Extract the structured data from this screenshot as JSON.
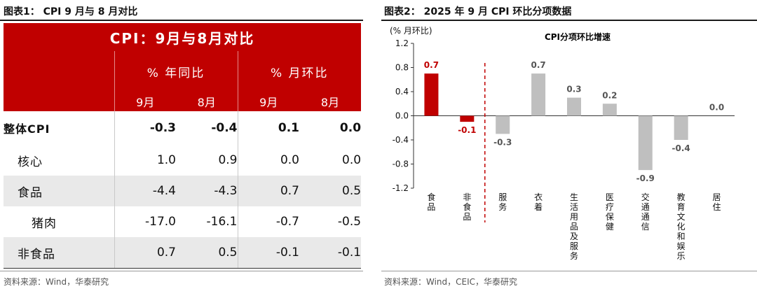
{
  "left_panel": {
    "title": "图表1： CPI 9 月与 8 月对比",
    "table_title": "CPI：9月与8月对比",
    "group_headers": [
      "% 年同比",
      "% 月环比"
    ],
    "month_headers": [
      "9月",
      "8月",
      "9月",
      "8月"
    ],
    "rows": [
      {
        "label": "整体CPI",
        "values": [
          "-0.3",
          "-0.4",
          "0.1",
          "0.0"
        ]
      },
      {
        "label": "核心",
        "values": [
          "1.0",
          "0.9",
          "0.0",
          "0.0"
        ]
      },
      {
        "label": "食品",
        "values": [
          "-4.4",
          "-4.3",
          "0.7",
          "0.5"
        ]
      },
      {
        "label": "猪肉",
        "values": [
          "-17.0",
          "-16.1",
          "-0.7",
          "-0.5"
        ]
      },
      {
        "label": "非食品",
        "values": [
          "0.7",
          "0.5",
          "-0.1",
          "-0.1"
        ]
      }
    ],
    "source": "资料来源：Wind，华泰研究"
  },
  "right_panel": {
    "title": "图表2： 2025 年 9 月 CPI 环比分项数据",
    "source": "资料来源：Wind，CEIC，华泰研究"
  },
  "colors": {
    "red": "#c00000",
    "gray": "#bfbfbf"
  },
  "chart_data": {
    "type": "bar",
    "title": "CPI分项环比增速",
    "ylabel": "(% 月环比)",
    "ylim": [
      -1.2,
      1.2
    ],
    "yticks": [
      "1.2",
      "0.8",
      "0.4",
      "0.0",
      "-0.4",
      "-0.8",
      "-1.2"
    ],
    "grid": false,
    "categories": [
      "食品",
      "非食品",
      "服务",
      "衣着",
      "生活用品及服务",
      "医疗保健",
      "交通通信",
      "教育文化和娱乐",
      "居住"
    ],
    "values": [
      0.7,
      -0.1,
      -0.3,
      0.7,
      0.3,
      0.2,
      -0.9,
      -0.4,
      0.0
    ],
    "value_labels": [
      "0.7",
      "-0.1",
      "-0.3",
      "0.7",
      "0.3",
      "0.2",
      "-0.9",
      "-0.4",
      "0.0"
    ],
    "highlighted": [
      true,
      true,
      false,
      false,
      false,
      false,
      false,
      false,
      false
    ],
    "divider": "dashed red line between 非食品 and 服务"
  }
}
